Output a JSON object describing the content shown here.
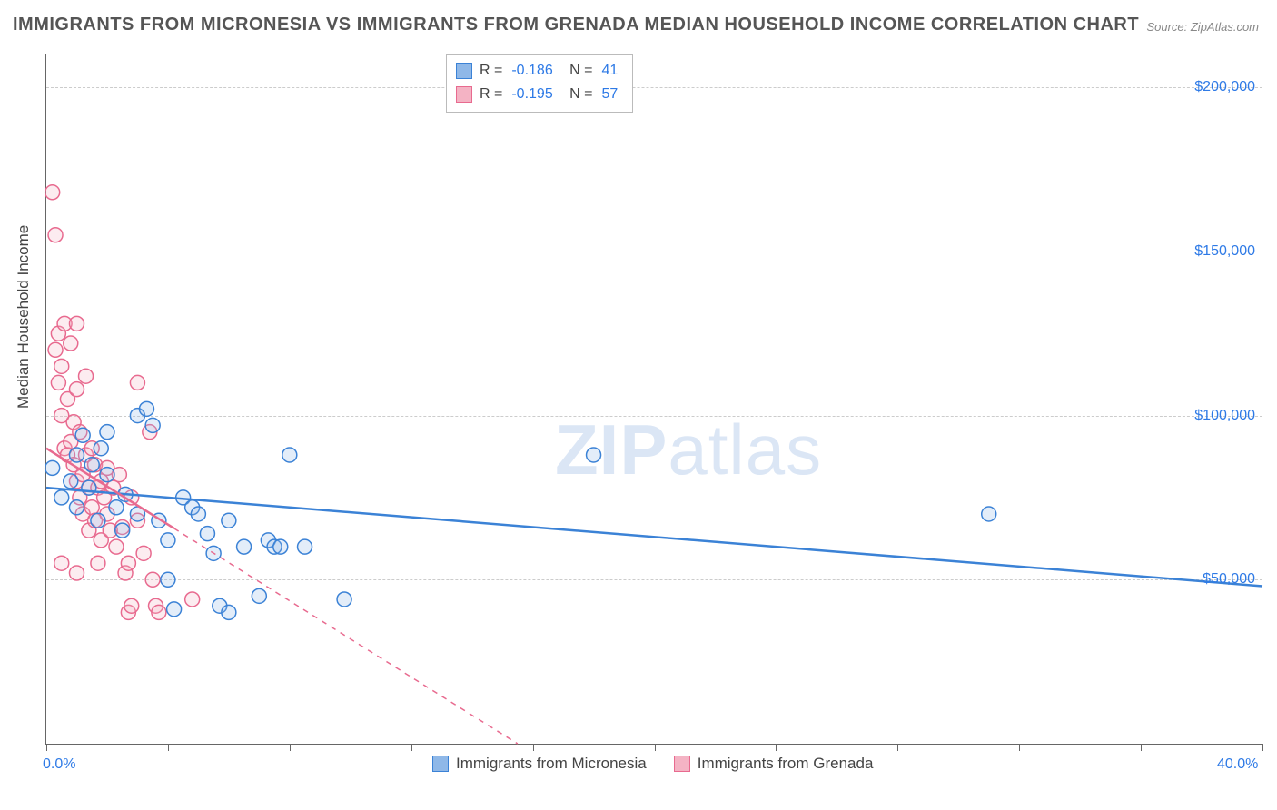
{
  "title": "IMMIGRANTS FROM MICRONESIA VS IMMIGRANTS FROM GRENADA MEDIAN HOUSEHOLD INCOME CORRELATION CHART",
  "source": "Source: ZipAtlas.com",
  "ylabel": "Median Household Income",
  "watermark_prefix": "ZIP",
  "watermark_suffix": "atlas",
  "chart": {
    "type": "scatter",
    "xlim": [
      0,
      40
    ],
    "ylim": [
      0,
      210000
    ],
    "x_tick_labels": {
      "0": "0.0%",
      "40": "40.0%"
    },
    "x_tick_positions": [
      0,
      4,
      8,
      12,
      16,
      20,
      24,
      28,
      32,
      36,
      40
    ],
    "y_ticks": [
      50000,
      100000,
      150000,
      200000
    ],
    "y_tick_labels": [
      "$50,000",
      "$100,000",
      "$150,000",
      "$200,000"
    ],
    "grid_color": "#cccccc",
    "background_color": "#ffffff",
    "axis_color": "#666666",
    "marker_radius": 8,
    "marker_stroke_width": 1.5,
    "marker_fill_opacity": 0.25,
    "trend_line_width": 2.5,
    "series": [
      {
        "name": "Immigrants from Micronesia",
        "color_stroke": "#3b82d6",
        "color_fill": "#8fb8e8",
        "R": "-0.186",
        "N": "41",
        "trend": {
          "x1": 0,
          "y1": 78000,
          "x2": 40,
          "y2": 48000,
          "dashed_after_x": null
        },
        "points": [
          [
            0.2,
            84000
          ],
          [
            0.5,
            75000
          ],
          [
            0.8,
            80000
          ],
          [
            1.0,
            88000
          ],
          [
            1.0,
            72000
          ],
          [
            1.2,
            94000
          ],
          [
            1.4,
            78000
          ],
          [
            1.5,
            85000
          ],
          [
            1.7,
            68000
          ],
          [
            1.8,
            90000
          ],
          [
            2.0,
            82000
          ],
          [
            2.0,
            95000
          ],
          [
            2.3,
            72000
          ],
          [
            2.5,
            65000
          ],
          [
            2.6,
            76000
          ],
          [
            3.0,
            70000
          ],
          [
            3.0,
            100000
          ],
          [
            3.3,
            102000
          ],
          [
            3.5,
            97000
          ],
          [
            3.7,
            68000
          ],
          [
            4.0,
            50000
          ],
          [
            4.0,
            62000
          ],
          [
            4.2,
            41000
          ],
          [
            4.5,
            75000
          ],
          [
            4.8,
            72000
          ],
          [
            5.0,
            70000
          ],
          [
            5.3,
            64000
          ],
          [
            5.5,
            58000
          ],
          [
            5.7,
            42000
          ],
          [
            6.0,
            68000
          ],
          [
            6.0,
            40000
          ],
          [
            6.5,
            60000
          ],
          [
            7.0,
            45000
          ],
          [
            7.3,
            62000
          ],
          [
            7.5,
            60000
          ],
          [
            7.7,
            60000
          ],
          [
            8.0,
            88000
          ],
          [
            8.5,
            60000
          ],
          [
            9.8,
            44000
          ],
          [
            18.0,
            88000
          ],
          [
            31.0,
            70000
          ]
        ]
      },
      {
        "name": "Immigrants from Grenada",
        "color_stroke": "#e86a8f",
        "color_fill": "#f4b3c4",
        "R": "-0.195",
        "N": "57",
        "trend": {
          "x1": 0,
          "y1": 90000,
          "x2": 15.5,
          "y2": 0,
          "dashed_after_x": 4.2
        },
        "points": [
          [
            0.2,
            168000
          ],
          [
            0.3,
            155000
          ],
          [
            0.3,
            120000
          ],
          [
            0.4,
            125000
          ],
          [
            0.4,
            110000
          ],
          [
            0.5,
            115000
          ],
          [
            0.5,
            100000
          ],
          [
            0.6,
            128000
          ],
          [
            0.6,
            90000
          ],
          [
            0.7,
            105000
          ],
          [
            0.7,
            88000
          ],
          [
            0.8,
            92000
          ],
          [
            0.8,
            122000
          ],
          [
            0.9,
            85000
          ],
          [
            0.9,
            98000
          ],
          [
            1.0,
            80000
          ],
          [
            1.0,
            108000
          ],
          [
            1.0,
            128000
          ],
          [
            1.1,
            75000
          ],
          [
            1.1,
            95000
          ],
          [
            1.2,
            82000
          ],
          [
            1.2,
            70000
          ],
          [
            1.3,
            88000
          ],
          [
            1.3,
            112000
          ],
          [
            1.4,
            78000
          ],
          [
            1.4,
            65000
          ],
          [
            1.5,
            90000
          ],
          [
            1.5,
            72000
          ],
          [
            1.6,
            85000
          ],
          [
            1.6,
            68000
          ],
          [
            1.7,
            78000
          ],
          [
            1.7,
            55000
          ],
          [
            1.8,
            80000
          ],
          [
            1.8,
            62000
          ],
          [
            1.9,
            75000
          ],
          [
            2.0,
            70000
          ],
          [
            2.0,
            84000
          ],
          [
            2.1,
            65000
          ],
          [
            2.2,
            78000
          ],
          [
            2.3,
            60000
          ],
          [
            2.4,
            82000
          ],
          [
            2.5,
            66000
          ],
          [
            2.6,
            52000
          ],
          [
            2.7,
            40000
          ],
          [
            2.8,
            75000
          ],
          [
            3.0,
            110000
          ],
          [
            3.0,
            68000
          ],
          [
            3.2,
            58000
          ],
          [
            3.4,
            95000
          ],
          [
            3.5,
            50000
          ],
          [
            3.6,
            42000
          ],
          [
            3.7,
            40000
          ],
          [
            2.7,
            55000
          ],
          [
            2.8,
            42000
          ],
          [
            4.8,
            44000
          ],
          [
            1.0,
            52000
          ],
          [
            0.5,
            55000
          ]
        ]
      }
    ]
  },
  "legend": [
    {
      "label": "Immigrants from Micronesia",
      "fill": "#8fb8e8",
      "stroke": "#3b82d6"
    },
    {
      "label": "Immigrants from Grenada",
      "fill": "#f4b3c4",
      "stroke": "#e86a8f"
    }
  ]
}
